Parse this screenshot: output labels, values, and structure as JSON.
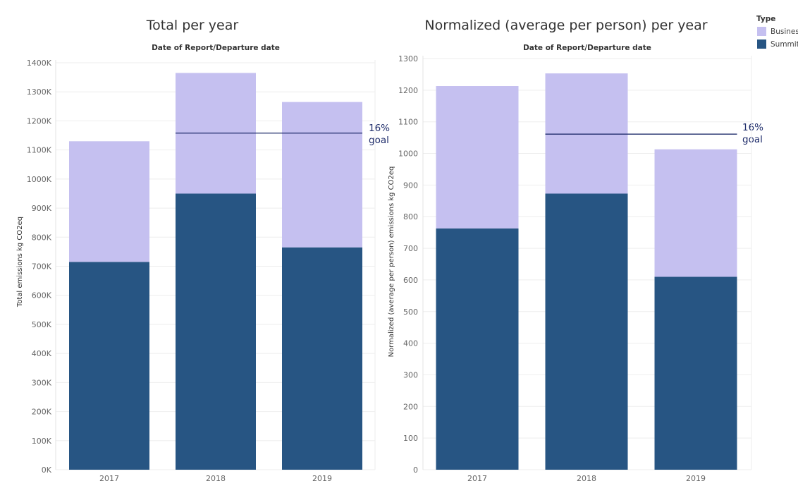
{
  "legend": {
    "title": "Type",
    "items": [
      {
        "name": "Busines",
        "color": "#c5c0f0"
      },
      {
        "name": "Summit",
        "color": "#275583"
      }
    ]
  },
  "chart_data": [
    {
      "type": "bar",
      "stacked": true,
      "title": "Total per year",
      "subtitle": "Date of Report/Departure date",
      "xlabel": "",
      "ylabel": "Total emissions kg CO2eq",
      "categories": [
        "2017",
        "2018",
        "2019"
      ],
      "series": [
        {
          "name": "Summit",
          "values": [
            715000,
            950000,
            765000
          ]
        },
        {
          "name": "Busines",
          "values": [
            415000,
            415000,
            500000
          ]
        }
      ],
      "ylim": [
        0,
        1400000
      ],
      "yticks": [
        0,
        100000,
        200000,
        300000,
        400000,
        500000,
        600000,
        700000,
        800000,
        900000,
        1000000,
        1100000,
        1200000,
        1300000,
        1400000
      ],
      "yticklabels": [
        "0K",
        "100K",
        "200K",
        "300K",
        "400K",
        "500K",
        "600K",
        "700K",
        "800K",
        "900K",
        "1000K",
        "1100K",
        "1200K",
        "1300K",
        "1400K"
      ],
      "reference_line": {
        "value": 1158000,
        "from": "2018",
        "to": "2019",
        "label": [
          "16%",
          "goal"
        ]
      },
      "grid": true
    },
    {
      "type": "bar",
      "stacked": true,
      "title": "Normalized (average per person) per year",
      "subtitle": "Date of Report/Departure date",
      "xlabel": "",
      "ylabel": "Normalized (average per person) emissions kg CO2eq",
      "categories": [
        "2017",
        "2018",
        "2019"
      ],
      "series": [
        {
          "name": "Summit",
          "values": [
            763,
            873,
            610
          ]
        },
        {
          "name": "Busines",
          "values": [
            450,
            380,
            403
          ]
        }
      ],
      "ylim": [
        0,
        1300
      ],
      "yticks": [
        0,
        100,
        200,
        300,
        400,
        500,
        600,
        700,
        800,
        900,
        1000,
        1100,
        1200,
        1300
      ],
      "yticklabels": [
        "0",
        "100",
        "200",
        "300",
        "400",
        "500",
        "600",
        "700",
        "800",
        "900",
        "1000",
        "1100",
        "1200",
        "1300"
      ],
      "reference_line": {
        "value": 1061,
        "from": "2018",
        "to": "2019",
        "label": [
          "16%",
          "goal"
        ]
      },
      "grid": true
    }
  ]
}
